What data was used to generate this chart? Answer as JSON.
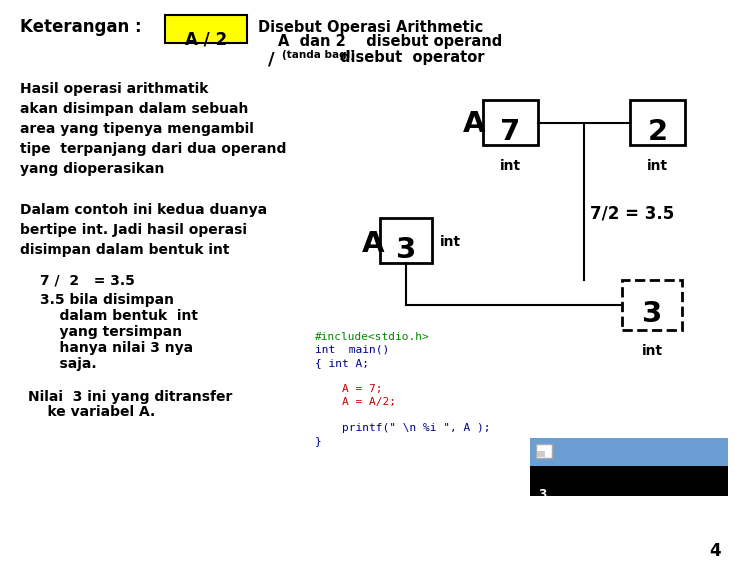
{
  "bg_color": "#ffffff",
  "title_keterangan": "Keterangan :",
  "title_box_text": "A / 2",
  "title_box_bg": "#ffff00",
  "header_line1": "Disebut Operasi Arithmetic",
  "header_line2": "A  dan 2    disebut operand",
  "header_line3_part1": "/",
  "header_line3_small": "(tanda bagi)",
  "header_line3_part2": "disebut  operator",
  "para1": "Hasil operasi arithmatik\nakan disimpan dalam sebuah\narea yang tipenya mengambil\ntipe  terpanjang dari dua operand\nyang dioperasikan",
  "para2": "Dalam contoh ini kedua duanya\nbertipe int. Jadi hasil operasi\ndisimpan dalam bentuk int",
  "para3_line1": "7 /  2   = 3.5",
  "para4_line1": "3.5 bila disimpan",
  "para4_line2": "    dalam bentuk  int",
  "para4_line3": "    yang tersimpan",
  "para4_line4": "    hanya nilai 3 nya",
  "para4_line5": "    saja.",
  "para5_line1": "Nilai  3 ini yang ditransfer",
  "para5_line2": "    ke variabel A.",
  "box_A7_label": "A",
  "box_A7_val": "7",
  "box_A7_type": "int",
  "box_2_val": "2",
  "box_2_type": "int",
  "eq_label": "7/2 = 3.5",
  "box_A3_label": "A",
  "box_A3_val": "3",
  "box_A3_int": "int",
  "box_result_val": "3",
  "box_result_type": "int",
  "code_line1": "#include<stdio.h>",
  "code_line2": "int  main()",
  "code_line3": "{ int A;",
  "code_line4": "    A = 7;",
  "code_line5": "    A = A/2;",
  "code_line6": "    printf(\" \\n %i \", A );",
  "code_line7": "}",
  "page_num": "4",
  "color_green": "#008800",
  "color_red": "#cc0000",
  "color_blue": "#000088"
}
